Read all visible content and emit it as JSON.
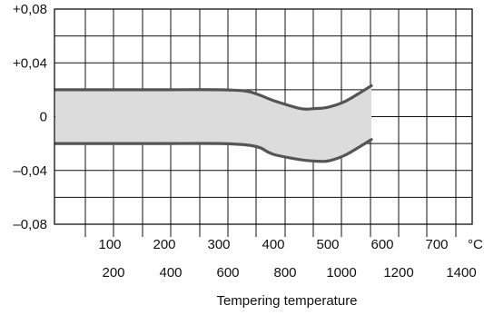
{
  "chart_data": {
    "type": "line",
    "title": "",
    "xlabel": "Tempering temperature",
    "x_unit_primary": "°C",
    "x_unit_secondary": "",
    "x_ticks_primary": [
      "100",
      "200",
      "300",
      "400",
      "500",
      "600",
      "700"
    ],
    "x_ticks_secondary": [
      "200",
      "400",
      "600",
      "800",
      "1000",
      "1200",
      "1400"
    ],
    "y_ticks": [
      "+0,08",
      "+0,04",
      "0",
      "–0,04",
      "–0,08"
    ],
    "ylim": [
      -0.08,
      0.08
    ],
    "xlim_primary": [
      0,
      800
    ],
    "grid": true,
    "band_fill": "#dcdcdc",
    "band_edge_color": "#555555",
    "series": [
      {
        "x": [
          0,
          100,
          200,
          300,
          350,
          375,
          400,
          450,
          475,
          500,
          530,
          560,
          580
        ],
        "y": [
          0.02,
          0.02,
          0.02,
          0.02,
          0.019,
          0.016,
          0.012,
          0.006,
          0.006,
          0.007,
          0.011,
          0.018,
          0.023
        ]
      },
      {
        "x": [
          0,
          100,
          200,
          300,
          350,
          375,
          400,
          450,
          475,
          500,
          530,
          560,
          580
        ],
        "y": [
          -0.02,
          -0.02,
          -0.02,
          -0.02,
          -0.021,
          -0.023,
          -0.028,
          -0.032,
          -0.033,
          -0.033,
          -0.029,
          -0.022,
          -0.017
        ]
      }
    ]
  }
}
